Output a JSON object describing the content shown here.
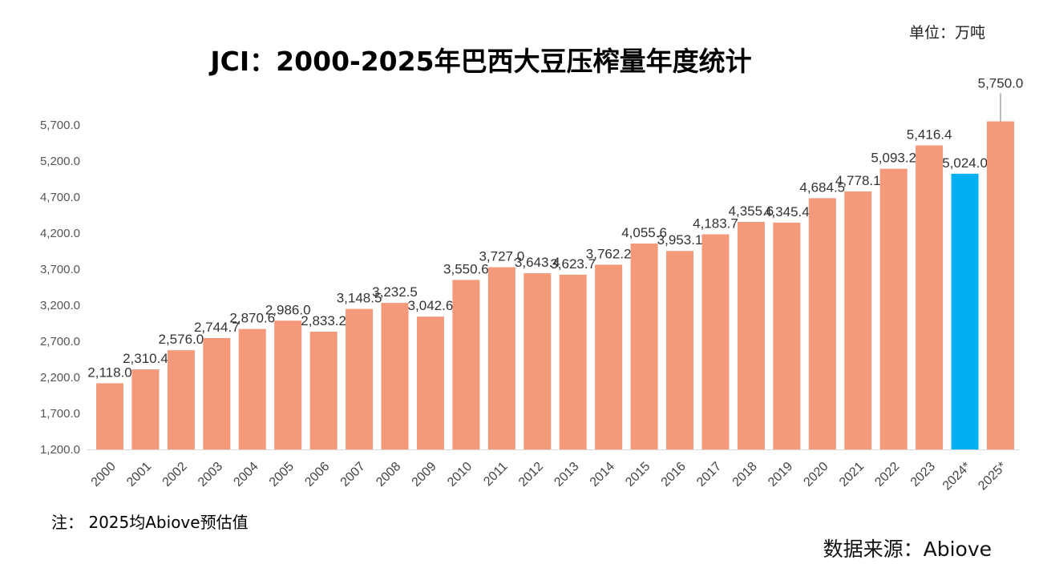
{
  "header": {
    "unit": "单位：万吨"
  },
  "footer": {
    "note": "注：  2025均Abiove预估值",
    "source": "数据来源：Abiove"
  },
  "colors": {
    "bar": "#F4997A",
    "highlight": "#00B0F0",
    "axis": "#D9D9D9",
    "leader": "#A6A6A6"
  },
  "chart_data": {
    "type": "bar",
    "title": "JCI：2000-2025年巴西大豆压榨量年度统计",
    "xlabel": "",
    "ylabel": "",
    "ylim": [
      1200,
      5700
    ],
    "yticks": [
      1200,
      1700,
      2200,
      2700,
      3200,
      3700,
      4200,
      4700,
      5200,
      5700
    ],
    "grid": false,
    "categories": [
      "2000",
      "2001",
      "2002",
      "2003",
      "2004",
      "2005",
      "2006",
      "2007",
      "2008",
      "2009",
      "2010",
      "2011",
      "2012",
      "2013",
      "2014",
      "2015",
      "2016",
      "2017",
      "2018",
      "2019",
      "2020",
      "2021",
      "2022",
      "2023",
      "2024*",
      "2025*"
    ],
    "values": [
      2118.0,
      2310.4,
      2576.0,
      2744.7,
      2870.6,
      2986.0,
      2833.2,
      3148.5,
      3232.5,
      3042.6,
      3550.6,
      3727.0,
      3643.4,
      3623.7,
      3762.2,
      4055.6,
      3953.1,
      4183.7,
      4355.6,
      4345.4,
      4684.5,
      4778.1,
      5093.2,
      5416.4,
      5024.0,
      5750.0
    ],
    "highlight_category": "2024*"
  }
}
